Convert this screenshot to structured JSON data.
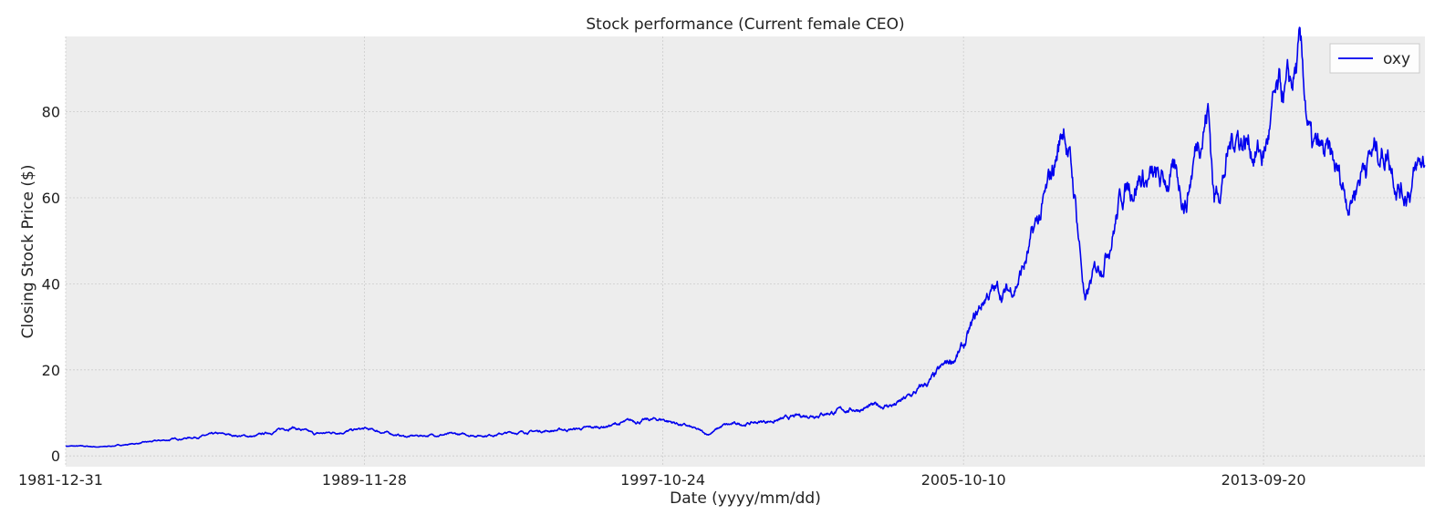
{
  "chart_data": {
    "type": "line",
    "title": "Stock performance (Current female CEO)",
    "xlabel": "Date (yyyy/mm/dd)",
    "ylabel": "Closing Stock Price ($)",
    "x_tick_labels": [
      "1981-12-31",
      "1989-11-28",
      "1997-10-24",
      "2005-10-10",
      "2013-09-20"
    ],
    "xlim": [
      "1981-12-31",
      "2017-12-29"
    ],
    "ylim": [
      -2.5,
      97.5
    ],
    "y_ticks": [
      0,
      20,
      40,
      60,
      80
    ],
    "grid": true,
    "legend_position": "top-right",
    "colors": {
      "series": "#0000ee",
      "plot_bg": "#ededed",
      "grid": "#cccccc"
    },
    "series": [
      {
        "name": "oxy",
        "x": [
          "1981-12-31",
          "1983-01-01",
          "1984-01-01",
          "1985-01-01",
          "1986-01-01",
          "1987-01-01",
          "1988-01-01",
          "1988-08-01",
          "1989-11-28",
          "1990-06-01",
          "1991-01-01",
          "1992-01-01",
          "1993-01-01",
          "1994-01-01",
          "1995-01-01",
          "1996-01-01",
          "1997-01-01",
          "1997-10-24",
          "1998-06-01",
          "1999-01-01",
          "1999-06-01",
          "2000-01-01",
          "2001-01-01",
          "2002-01-01",
          "2003-01-01",
          "2004-01-01",
          "2004-06-01",
          "2005-01-01",
          "2005-10-10",
          "2006-06-01",
          "2007-01-01",
          "2007-06-01",
          "2008-01-01",
          "2008-06-15",
          "2008-10-01",
          "2009-01-01",
          "2009-03-01",
          "2009-06-01",
          "2010-01-01",
          "2010-06-01",
          "2011-01-01",
          "2011-04-01",
          "2011-09-01",
          "2012-01-01",
          "2012-04-01",
          "2012-06-01",
          "2013-01-01",
          "2013-09-20",
          "2014-01-01",
          "2014-06-15",
          "2014-09-01",
          "2015-01-01",
          "2015-06-01",
          "2016-01-01",
          "2016-06-01",
          "2017-01-01",
          "2017-06-01",
          "2017-12-29"
        ],
        "values": [
          2.3,
          2.1,
          3,
          4,
          5,
          4.5,
          6.8,
          5,
          6.2,
          5.5,
          4.5,
          5,
          4.8,
          5.5,
          6,
          6.5,
          8,
          8.5,
          7,
          5,
          7,
          7.5,
          8.5,
          10,
          11,
          12,
          14,
          18,
          25,
          38,
          38,
          45,
          60,
          78,
          58,
          35,
          40,
          45,
          62,
          66,
          62,
          65,
          60,
          75,
          82,
          60,
          76,
          70,
          80,
          84,
          92,
          70,
          68,
          60,
          70,
          72,
          62,
          68
        ]
      }
    ]
  }
}
